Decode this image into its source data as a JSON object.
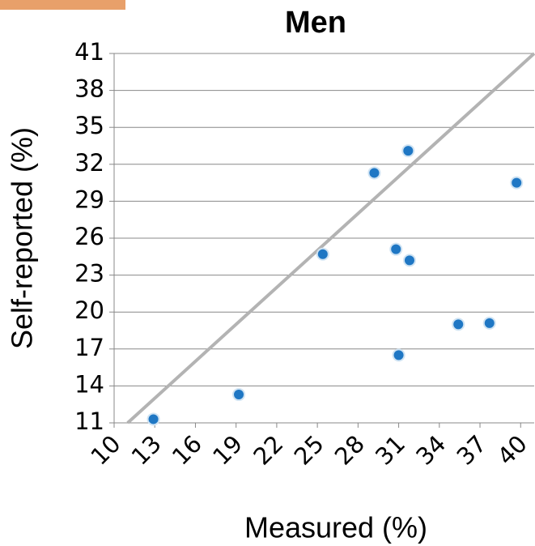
{
  "chart_data": {
    "type": "scatter",
    "title": "Men",
    "xlabel": "Measured (%)",
    "ylabel": "Self-reported (%)",
    "xlim": [
      10,
      41
    ],
    "ylim": [
      11,
      41
    ],
    "xticks": [
      10,
      13,
      16,
      19,
      22,
      25,
      28,
      31,
      34,
      37,
      40
    ],
    "yticks": [
      11,
      14,
      17,
      20,
      23,
      26,
      29,
      32,
      35,
      38,
      41
    ],
    "grid": true,
    "series": [
      {
        "color": "#1f77c4",
        "x": [
          12.9,
          19.2,
          25.4,
          29.2,
          31.7,
          30.8,
          31.8,
          31.0,
          35.4,
          37.7,
          39.7
        ],
        "y": [
          11.3,
          13.3,
          24.7,
          31.3,
          33.1,
          25.1,
          24.2,
          16.5,
          19.0,
          19.1,
          30.5
        ]
      }
    ],
    "reference_line": {
      "color": "#b3b3b3",
      "x": [
        11,
        41
      ],
      "y": [
        11,
        41
      ]
    }
  }
}
